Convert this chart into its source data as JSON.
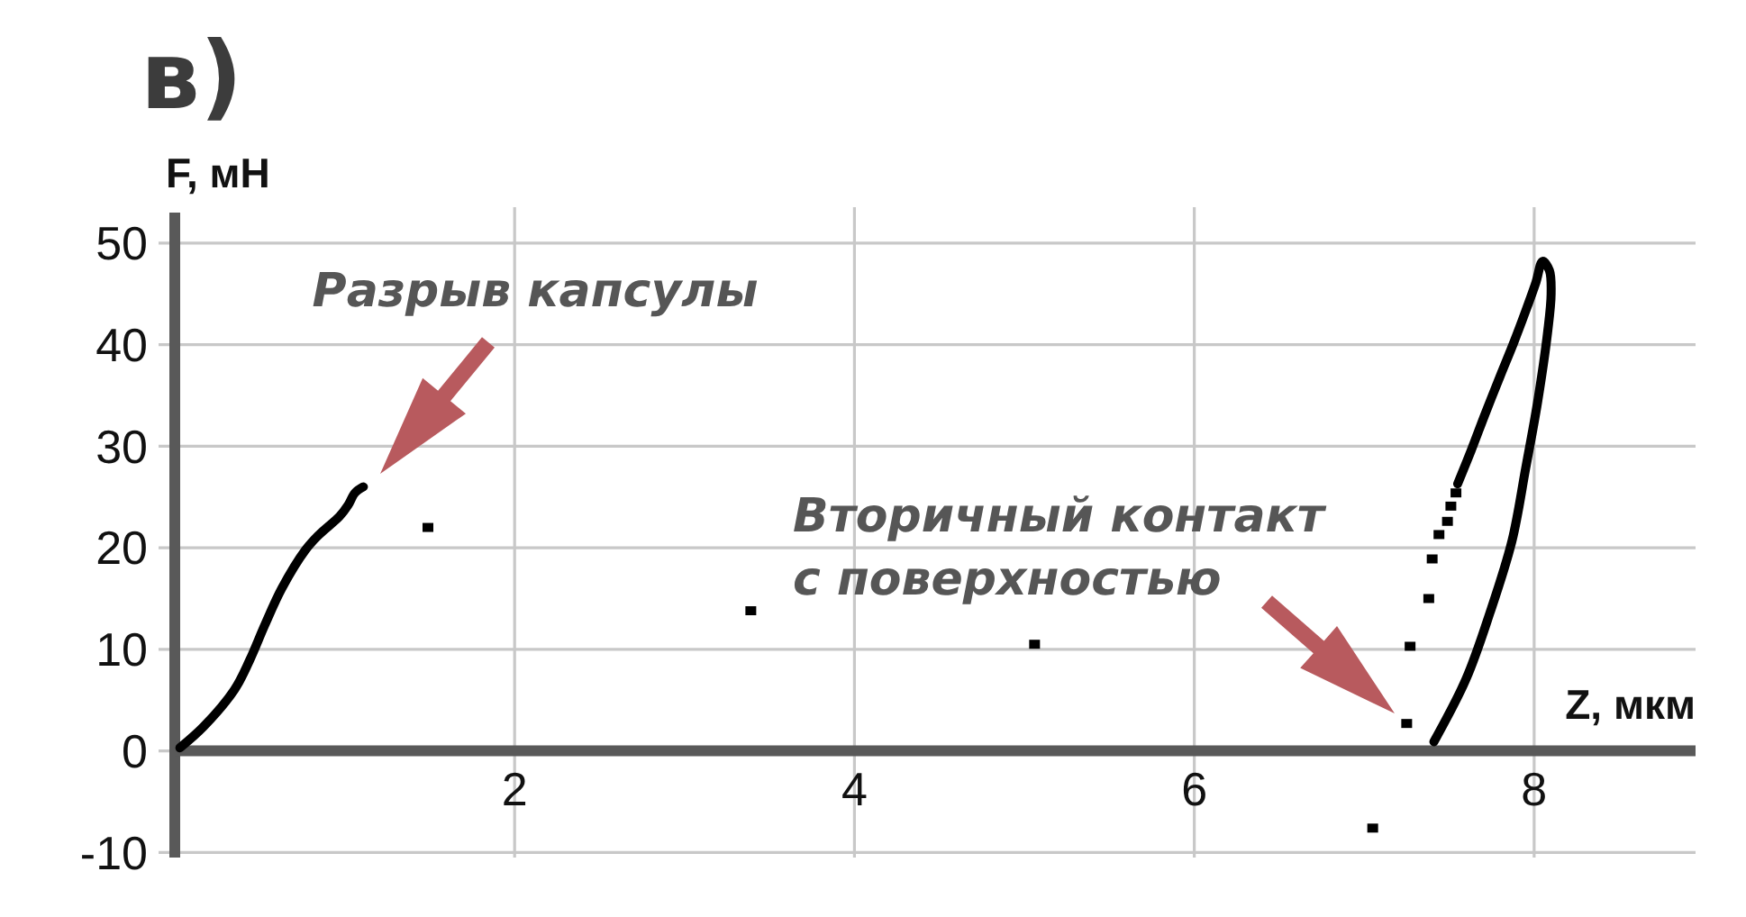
{
  "chart_data": {
    "type": "line",
    "title": "в)",
    "xlabel": "Z, мкм",
    "ylabel": "F, мН",
    "xlim": [
      0,
      8.95
    ],
    "ylim": [
      -10.5,
      53
    ],
    "xticks": [
      2,
      4,
      6,
      8
    ],
    "yticks": [
      -10,
      0,
      10,
      20,
      30,
      40,
      50
    ],
    "grid": true,
    "series": [
      {
        "type": "line",
        "color": "#000000",
        "x": [
          0.03,
          0.17,
          0.35,
          0.44,
          0.53,
          0.63,
          0.77,
          0.85,
          0.97,
          1.02,
          1.06,
          1.11
        ],
        "values": [
          0.3,
          2.4,
          6.0,
          8.9,
          12.4,
          16.0,
          19.8,
          21.3,
          23.1,
          24.2,
          25.4,
          26.0
        ]
      },
      {
        "type": "scatter",
        "color": "#000000",
        "marker": "square",
        "x": [
          1.49,
          3.39,
          5.06,
          7.05,
          7.25,
          7.27,
          7.38,
          7.4,
          7.44,
          7.49,
          7.51,
          7.54
        ],
        "values": [
          22.0,
          13.8,
          10.5,
          -7.6,
          2.7,
          10.3,
          15.0,
          18.9,
          21.3,
          22.6,
          24.1,
          25.4
        ]
      },
      {
        "type": "line",
        "color": "#000000",
        "x": [
          7.55,
          7.63,
          7.71,
          7.8,
          7.88,
          7.95,
          8.01,
          8.05,
          8.09,
          8.1,
          8.08,
          8.02,
          7.95,
          7.87,
          7.74,
          7.6,
          7.41
        ],
        "values": [
          26.3,
          29.6,
          33.1,
          36.9,
          40.2,
          43.3,
          46.1,
          48.2,
          47.3,
          45.0,
          41.3,
          34.3,
          27.8,
          20.7,
          13.6,
          7.1,
          0.9
        ]
      }
    ],
    "annotations": [
      "Разрыв капсулы",
      "Вторичный контакт с поверхностью"
    ]
  }
}
